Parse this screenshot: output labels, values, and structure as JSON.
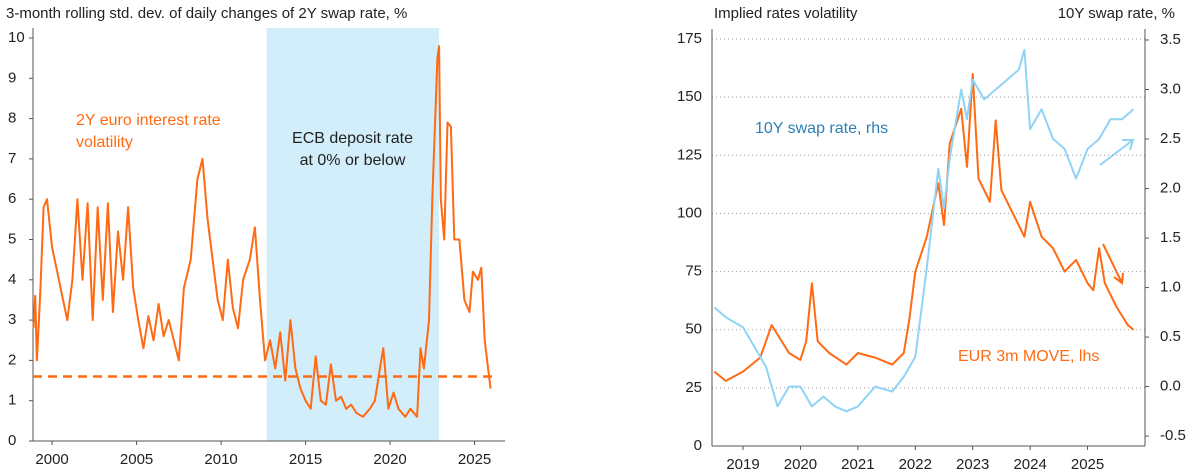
{
  "chart_data": [
    {
      "type": "line",
      "title": "3-month rolling std. dev. of daily changes of 2Y swap rate, %",
      "xlim": [
        1998.87,
        2026.8
      ],
      "xticks": [
        2000,
        2005,
        2010,
        2015,
        2020,
        2025
      ],
      "ylim": [
        0,
        10
      ],
      "yticks": [
        0,
        1,
        2,
        3,
        4,
        5,
        6,
        7,
        8,
        9,
        10
      ],
      "grid": false,
      "reference_line": 1.6,
      "shaded_span": [
        2012.7,
        2022.9
      ],
      "shaded_color": "#d3eefb",
      "shaded_label": "ECB deposit rate at 0% or below",
      "series": [
        {
          "name": "2Y euro interest rate volatility",
          "color": "#ff6a13",
          "x": [
            1998.9,
            1999.0,
            1999.1,
            1999.3,
            1999.5,
            1999.7,
            2000.0,
            2000.3,
            2000.6,
            2000.9,
            2001.2,
            2001.5,
            2001.8,
            2002.1,
            2002.4,
            2002.7,
            2003.0,
            2003.3,
            2003.6,
            2003.9,
            2004.2,
            2004.5,
            2004.8,
            2005.1,
            2005.4,
            2005.7,
            2006.0,
            2006.3,
            2006.6,
            2006.9,
            2007.2,
            2007.5,
            2007.8,
            2008.2,
            2008.6,
            2008.9,
            2009.2,
            2009.5,
            2009.8,
            2010.1,
            2010.4,
            2010.7,
            2011.0,
            2011.3,
            2011.7,
            2012.0,
            2012.3,
            2012.6,
            2012.9,
            2013.2,
            2013.5,
            2013.8,
            2014.1,
            2014.4,
            2014.7,
            2015.0,
            2015.3,
            2015.6,
            2015.9,
            2016.2,
            2016.5,
            2016.8,
            2017.1,
            2017.4,
            2017.7,
            2018.0,
            2018.4,
            2018.8,
            2019.1,
            2019.4,
            2019.6,
            2019.9,
            2020.2,
            2020.5,
            2020.9,
            2021.2,
            2021.6,
            2021.8,
            2022.0,
            2022.3,
            2022.5,
            2022.8,
            2022.9,
            2023.0,
            2023.2,
            2023.4,
            2023.6,
            2023.8,
            2024.1,
            2024.4,
            2024.7,
            2024.9,
            2025.2,
            2025.4,
            2025.6,
            2025.8,
            2025.95
          ],
          "values": [
            2.8,
            3.6,
            2.0,
            3.7,
            5.8,
            6.0,
            4.8,
            4.2,
            3.6,
            3.0,
            4.0,
            6.0,
            4.0,
            5.9,
            3.0,
            5.8,
            3.5,
            5.9,
            3.2,
            5.2,
            4.0,
            5.8,
            3.8,
            3.0,
            2.3,
            3.1,
            2.5,
            3.4,
            2.6,
            3.0,
            2.5,
            2.0,
            3.8,
            4.5,
            6.5,
            7.0,
            5.5,
            4.5,
            3.5,
            3.0,
            4.5,
            3.3,
            2.8,
            4.0,
            4.5,
            5.3,
            3.5,
            2.0,
            2.5,
            1.8,
            2.7,
            1.5,
            3.0,
            1.8,
            1.3,
            1.0,
            0.8,
            2.1,
            1.0,
            0.9,
            1.9,
            1.0,
            1.1,
            0.8,
            0.9,
            0.7,
            0.6,
            0.8,
            1.0,
            1.8,
            2.3,
            0.8,
            1.2,
            0.8,
            0.6,
            0.8,
            0.6,
            2.3,
            1.8,
            3.0,
            6.0,
            9.5,
            9.8,
            6.0,
            5.0,
            7.9,
            7.8,
            5.0,
            5.0,
            3.5,
            3.2,
            4.2,
            4.0,
            4.3,
            2.5,
            1.8,
            1.3
          ]
        }
      ]
    },
    {
      "type": "line",
      "ylabel": "Implied rates volatility",
      "y2label": "10Y swap rate, %",
      "xlim": [
        2018.46,
        2026.0
      ],
      "xticks": [
        2019,
        2020,
        2021,
        2022,
        2023,
        2024,
        2025
      ],
      "ylim": [
        0,
        175
      ],
      "yticks": [
        0,
        25,
        50,
        75,
        100,
        125,
        150,
        175
      ],
      "y2lim": [
        -0.6,
        3.51
      ],
      "y2ticks": [
        -0.5,
        {
          "value": 0,
          "label": "0.0"
        },
        0.5,
        {
          "value": 1,
          "label": "1.0"
        },
        1.5,
        {
          "value": 2,
          "label": "2.0"
        },
        2.5,
        {
          "value": 3,
          "label": "3.0"
        },
        3.5
      ],
      "grid": true,
      "series": [
        {
          "name": "EUR 3m MOVE, lhs",
          "color": "#ff6a13",
          "label_color": "#ff6a13",
          "x": [
            2018.5,
            2018.7,
            2019.0,
            2019.3,
            2019.5,
            2019.8,
            2020.0,
            2020.1,
            2020.2,
            2020.3,
            2020.5,
            2020.8,
            2021.0,
            2021.3,
            2021.6,
            2021.8,
            2021.9,
            2022.0,
            2022.2,
            2022.4,
            2022.5,
            2022.6,
            2022.8,
            2022.9,
            2023.0,
            2023.1,
            2023.3,
            2023.4,
            2023.5,
            2023.7,
            2023.9,
            2024.0,
            2024.2,
            2024.4,
            2024.6,
            2024.8,
            2025.0,
            2025.1,
            2025.2,
            2025.3,
            2025.5,
            2025.7,
            2025.8
          ],
          "values": [
            32,
            28,
            32,
            38,
            52,
            40,
            37,
            45,
            70,
            45,
            40,
            35,
            40,
            38,
            35,
            40,
            55,
            75,
            90,
            113,
            95,
            130,
            145,
            120,
            160,
            115,
            105,
            140,
            110,
            100,
            90,
            105,
            90,
            85,
            75,
            80,
            70,
            67,
            85,
            70,
            60,
            52,
            50
          ]
        },
        {
          "name": "10Y swap rate, rhs",
          "color": "#8fd3f5",
          "label_color": "#2f7fb5",
          "axis": "y2",
          "x": [
            2018.5,
            2018.7,
            2019.0,
            2019.2,
            2019.4,
            2019.6,
            2019.8,
            2020.0,
            2020.2,
            2020.4,
            2020.6,
            2020.8,
            2021.0,
            2021.3,
            2021.6,
            2021.8,
            2022.0,
            2022.2,
            2022.4,
            2022.5,
            2022.6,
            2022.8,
            2022.9,
            2023.0,
            2023.2,
            2023.4,
            2023.6,
            2023.8,
            2023.9,
            2024.0,
            2024.2,
            2024.4,
            2024.6,
            2024.8,
            2025.0,
            2025.2,
            2025.4,
            2025.6,
            2025.8
          ],
          "values": [
            0.8,
            0.7,
            0.6,
            0.4,
            0.2,
            -0.2,
            0.0,
            0.0,
            -0.2,
            -0.1,
            -0.2,
            -0.25,
            -0.2,
            0.0,
            -0.05,
            0.1,
            0.3,
            1.2,
            2.2,
            1.8,
            2.3,
            3.0,
            2.7,
            3.1,
            2.9,
            3.0,
            3.1,
            3.2,
            3.4,
            2.6,
            2.8,
            2.5,
            2.4,
            2.1,
            2.4,
            2.5,
            2.7,
            2.7,
            2.8
          ]
        }
      ]
    }
  ]
}
